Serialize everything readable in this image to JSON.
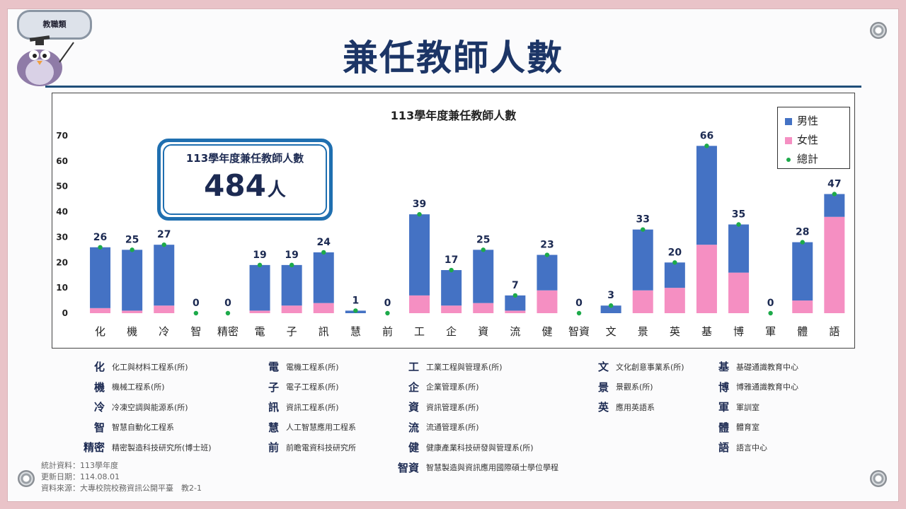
{
  "badge": "教職類",
  "page_title": "兼任教師人數",
  "total_box": {
    "label": "113學年度兼任教師人數",
    "value": "484",
    "unit": "人"
  },
  "colors": {
    "male": "#4472c4",
    "female": "#f58fc2",
    "total": "#1daa4a",
    "title": "#1c3566"
  },
  "chart_data": {
    "type": "bar",
    "stacked": true,
    "title": "113學年度兼任教師人數",
    "categories": [
      "化",
      "機",
      "冷",
      "智",
      "精密",
      "電",
      "子",
      "訊",
      "慧",
      "前",
      "工",
      "企",
      "資",
      "流",
      "健",
      "智資",
      "文",
      "景",
      "英",
      "基",
      "博",
      "軍",
      "體",
      "語"
    ],
    "series": [
      {
        "name": "男性",
        "values": [
          24,
          24,
          24,
          0,
          0,
          18,
          16,
          20,
          1,
          0,
          32,
          14,
          21,
          6,
          14,
          0,
          3,
          24,
          10,
          39,
          19,
          0,
          23,
          9
        ]
      },
      {
        "name": "女性",
        "values": [
          2,
          1,
          3,
          0,
          0,
          1,
          3,
          4,
          0,
          0,
          7,
          3,
          4,
          1,
          9,
          0,
          0,
          9,
          10,
          27,
          16,
          0,
          5,
          38
        ]
      }
    ],
    "totals": [
      26,
      25,
      27,
      0,
      0,
      19,
      19,
      24,
      1,
      0,
      39,
      17,
      25,
      7,
      23,
      0,
      3,
      33,
      20,
      66,
      35,
      0,
      28,
      47
    ],
    "total_series_name": "總計",
    "yticks": [
      0,
      10,
      20,
      30,
      40,
      50,
      60,
      70
    ],
    "ylim": [
      0,
      70
    ],
    "legend_position": "top-right"
  },
  "legend": {
    "col1": [
      {
        "abbr": "化",
        "name": "化工與材料工程系(所)"
      },
      {
        "abbr": "機",
        "name": "機械工程系(所)"
      },
      {
        "abbr": "冷",
        "name": "冷凍空調與能源系(所)"
      },
      {
        "abbr": "智",
        "name": "智慧自動化工程系"
      },
      {
        "abbr": "精密",
        "name": "精密製造科技研究所(博士班)"
      }
    ],
    "col2": [
      {
        "abbr": "電",
        "name": "電機工程系(所)"
      },
      {
        "abbr": "子",
        "name": "電子工程系(所)"
      },
      {
        "abbr": "訊",
        "name": "資訊工程系(所)"
      },
      {
        "abbr": "慧",
        "name": "人工智慧應用工程系"
      },
      {
        "abbr": "前",
        "name": "前瞻電資科技研究所"
      }
    ],
    "col3": [
      {
        "abbr": "工",
        "name": "工業工程與管理系(所)"
      },
      {
        "abbr": "企",
        "name": "企業管理系(所)"
      },
      {
        "abbr": "資",
        "name": "資訊管理系(所)"
      },
      {
        "abbr": "流",
        "name": "流通管理系(所)"
      },
      {
        "abbr": "健",
        "name": "健康產業科技研發與管理系(所)"
      },
      {
        "abbr": "智資",
        "name": "智慧製造與資訊應用國際碩士學位學程"
      }
    ],
    "col4": [
      {
        "abbr": "文",
        "name": "文化創意事業系(所)"
      },
      {
        "abbr": "景",
        "name": "景觀系(所)"
      },
      {
        "abbr": "英",
        "name": "應用英語系"
      }
    ],
    "col5": [
      {
        "abbr": "基",
        "name": "基礎通識教育中心"
      },
      {
        "abbr": "博",
        "name": "博雅通識教育中心"
      },
      {
        "abbr": "軍",
        "name": "軍訓室"
      },
      {
        "abbr": "體",
        "name": "體育室"
      },
      {
        "abbr": "語",
        "name": "語言中心"
      }
    ]
  },
  "footnotes": {
    "stats": "統計資料：113學年度",
    "updated": "更新日期：114.08.01",
    "source": "資料來源：大專校院校務資訊公開平臺　教2-1"
  }
}
